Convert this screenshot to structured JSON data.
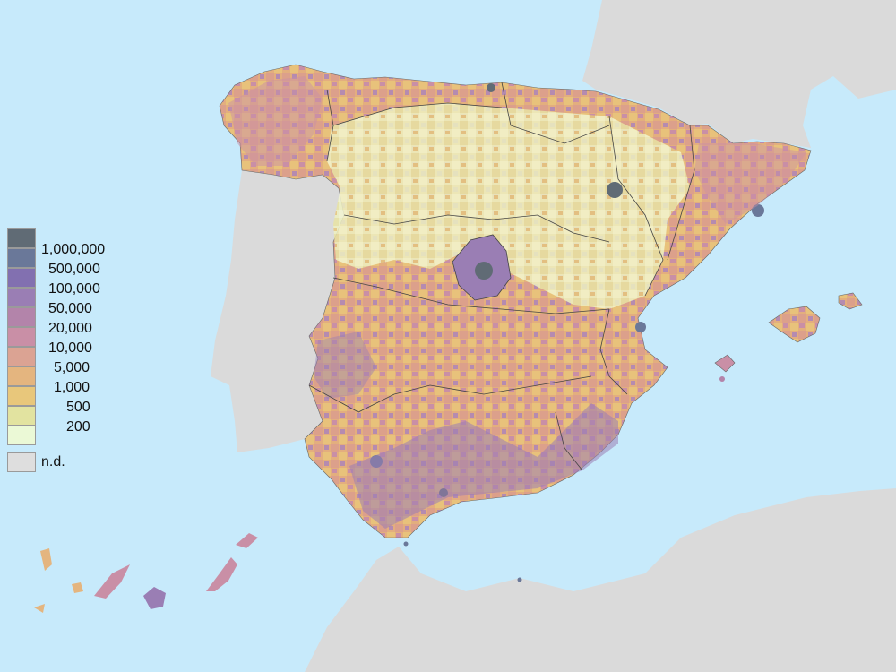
{
  "map": {
    "colors": {
      "sea": "#c7eafb",
      "land_other": "#dadada",
      "border": "#444444"
    },
    "legend": [
      {
        "label": "1,000,000",
        "color": "#606b75"
      },
      {
        "label": "500,000",
        "color": "#6a7899"
      },
      {
        "label": "100,000",
        "color": "#8270b0"
      },
      {
        "label": "50,000",
        "color": "#9a7eb4"
      },
      {
        "label": "20,000",
        "color": "#b384aa"
      },
      {
        "label": "10,000",
        "color": "#c98fa6"
      },
      {
        "label": "5,000",
        "color": "#dba393"
      },
      {
        "label": "1,000",
        "color": "#e4b57f"
      },
      {
        "label": "500",
        "color": "#e8c77b"
      },
      {
        "label": "200",
        "color": "#e2e3a0"
      },
      {
        "label": "",
        "color": "#ebf9d6"
      }
    ],
    "no_data": {
      "label": "n.d.",
      "color": "#dedede"
    }
  }
}
